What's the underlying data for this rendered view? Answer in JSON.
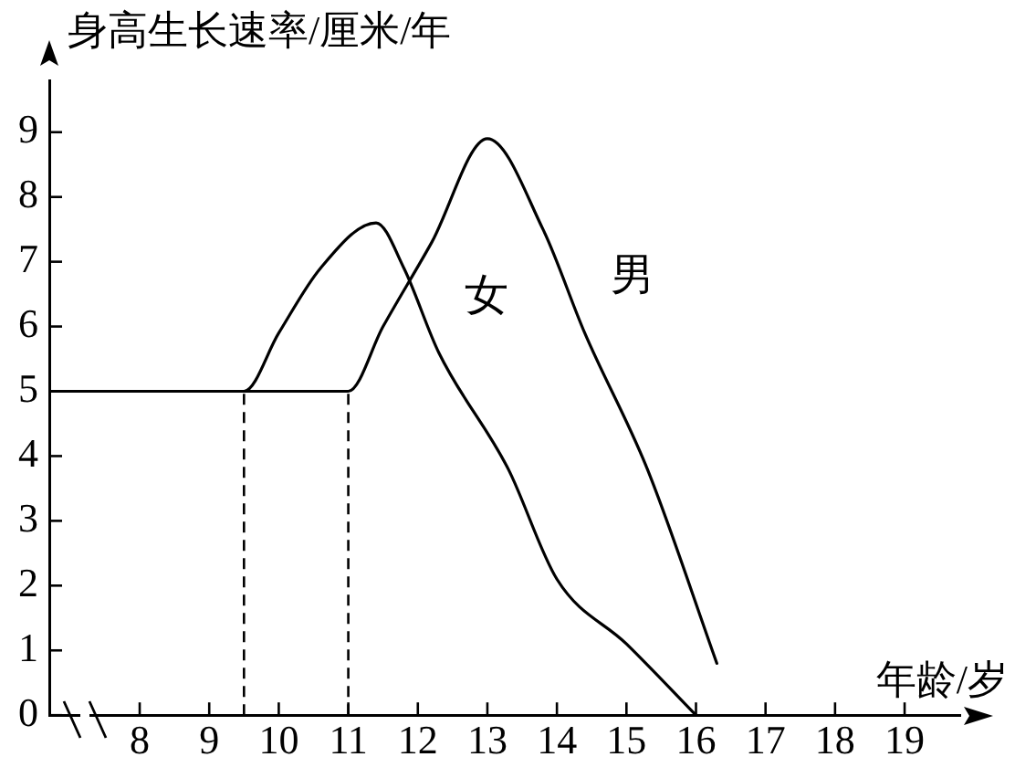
{
  "chart_data": {
    "type": "line",
    "xlabel": "年龄/岁",
    "ylabel": "身高生长速率/厘米/年",
    "xlim": [
      6.7,
      19.8
    ],
    "xticks": [
      8,
      9,
      10,
      11,
      12,
      13,
      14,
      15,
      16,
      17,
      18,
      19
    ],
    "ylim": [
      0,
      9.8
    ],
    "yticks": [
      0,
      1,
      2,
      3,
      4,
      5,
      6,
      7,
      8,
      9
    ],
    "series": [
      {
        "name": "女",
        "color": "#000000",
        "x": [
          6.7,
          9.5,
          10,
          10.6,
          11.4,
          11.8,
          12.3,
          13.3,
          14,
          15,
          16
        ],
        "values": [
          5,
          5,
          5.9,
          6.9,
          7.6,
          6.9,
          5.6,
          3.8,
          2.1,
          1.1,
          0
        ]
      },
      {
        "name": "男",
        "color": "#000000",
        "x": [
          6.7,
          11,
          11.5,
          12.2,
          13,
          13.8,
          14.4,
          15.3,
          16.3
        ],
        "values": [
          5,
          5,
          6,
          7.3,
          8.9,
          7.5,
          5.9,
          3.8,
          0.8
        ]
      }
    ],
    "ref_lines": [
      {
        "axis": "x",
        "value": 9.5,
        "color": "#000000",
        "line_style": "dashed"
      },
      {
        "axis": "x",
        "value": 11,
        "color": "#000000",
        "line_style": "dashed"
      }
    ],
    "marker": "none",
    "line_style": "solid"
  }
}
